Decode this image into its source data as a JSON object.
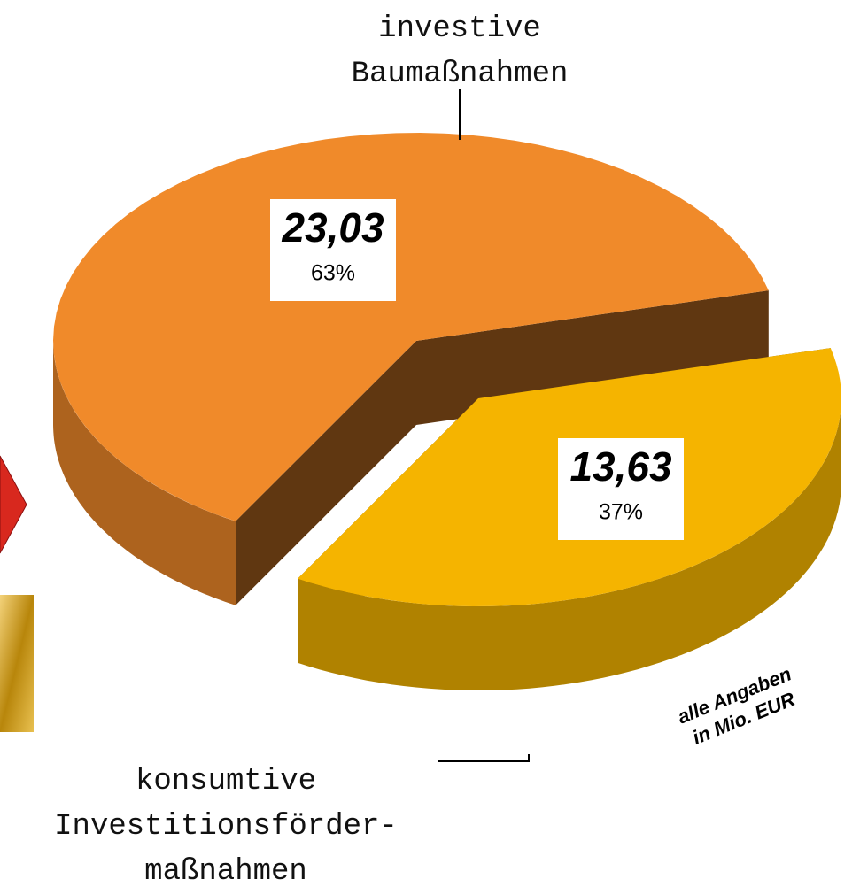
{
  "chart_data": {
    "type": "pie",
    "labels": [
      [
        "investive",
        "Baumaßnahmen"
      ],
      [
        "konsumtive",
        "Investitionsförder-",
        "maßnahmen"
      ]
    ],
    "values": [
      23.03,
      13.63
    ],
    "value_labels": [
      "23,03",
      "13,63"
    ],
    "percentages": [
      63,
      37
    ],
    "percentage_labels": [
      "63%",
      "37%"
    ],
    "colors": [
      "#f08a2a",
      "#f5b400"
    ],
    "annotation": [
      "alle Angaben",
      "in Mio. EUR"
    ]
  }
}
